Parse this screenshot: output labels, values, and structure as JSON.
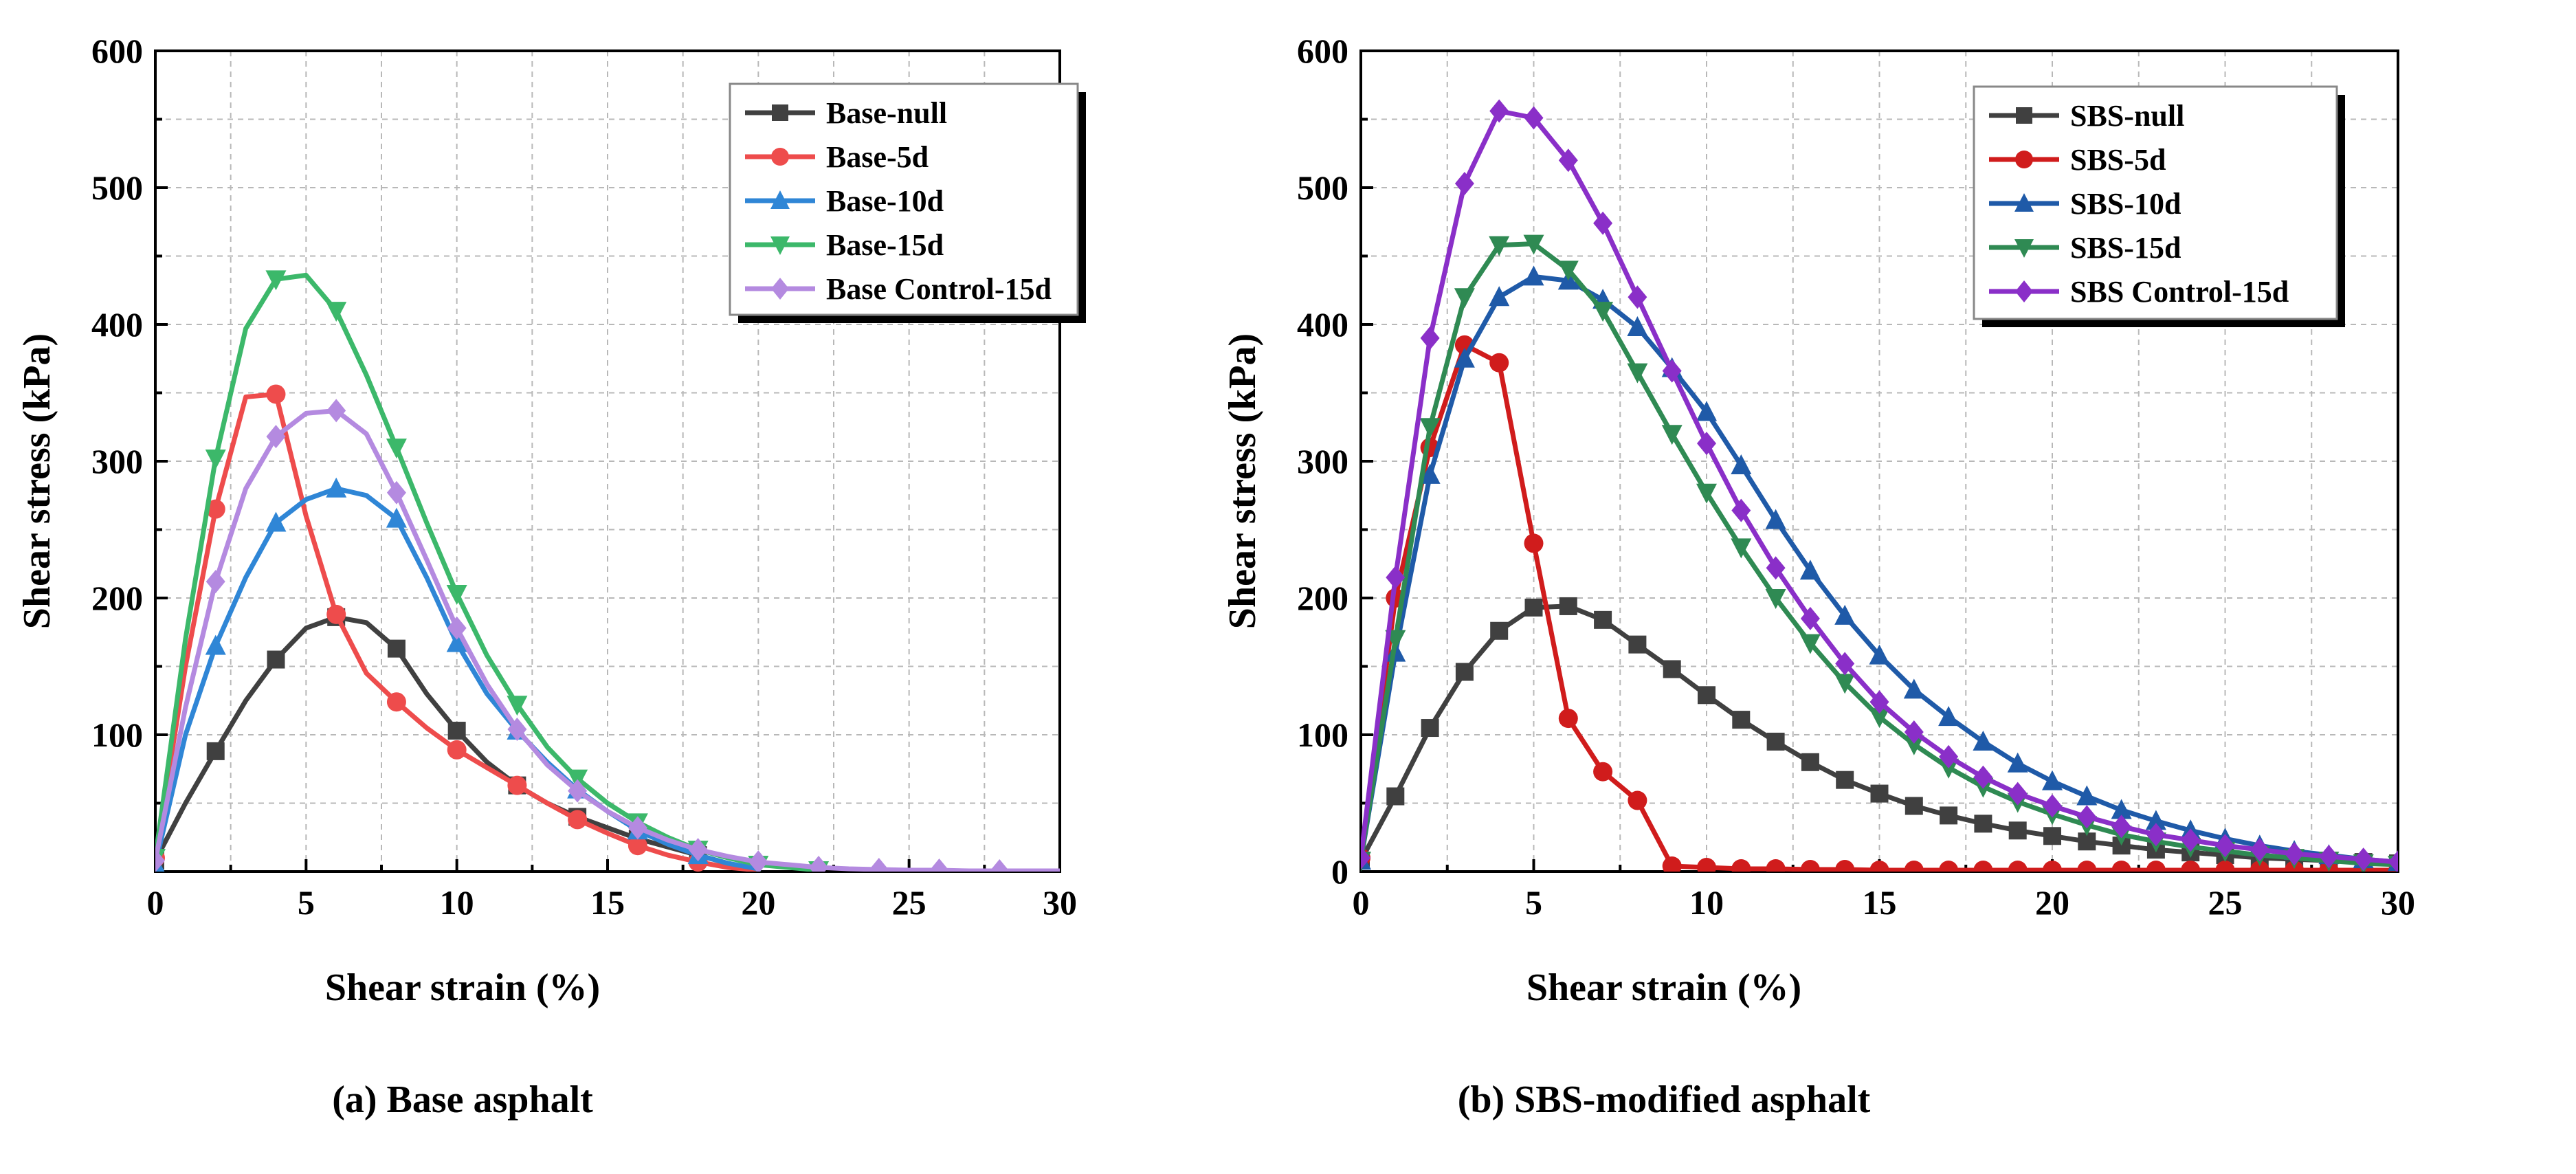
{
  "chart_data": [
    {
      "type": "line",
      "caption": "(a) Base asphalt",
      "xlabel": "Shear strain (%)",
      "ylabel": "Shear stress (kPa)",
      "xlim": [
        0,
        30
      ],
      "ylim": [
        0,
        600
      ],
      "xticks": [
        0,
        5,
        10,
        15,
        20,
        25,
        30
      ],
      "xtick_labels": [
        "0",
        "5",
        "10",
        "15",
        "20",
        "25",
        "30"
      ],
      "yticks": [
        100,
        200,
        300,
        400,
        500,
        600
      ],
      "ytick_labels": [
        "100",
        "200",
        "300",
        "400",
        "500",
        "600"
      ],
      "grid": true,
      "legend_position": "top-right",
      "series": [
        {
          "name": "Base-null",
          "color": "#404040",
          "marker": "square",
          "x": [
            0,
            1,
            2,
            3,
            4,
            5,
            6,
            7,
            8,
            9,
            10,
            11,
            12,
            13,
            14,
            15,
            16,
            17,
            18,
            19,
            20
          ],
          "y": [
            8,
            50,
            88,
            125,
            155,
            178,
            186,
            182,
            163,
            130,
            103,
            80,
            63,
            50,
            40,
            32,
            24,
            18,
            12,
            6,
            1
          ],
          "markers_at": [
            0,
            2,
            4,
            6,
            8,
            10,
            12,
            14,
            16,
            18
          ]
        },
        {
          "name": "Base-5d",
          "color": "#ee4c4c",
          "marker": "circle",
          "x": [
            0,
            1,
            2,
            3,
            4,
            5,
            6,
            7,
            8,
            9,
            10,
            11,
            12,
            13,
            14,
            15,
            16,
            17,
            18,
            19,
            20
          ],
          "y": [
            10,
            150,
            265,
            347,
            349,
            260,
            188,
            145,
            124,
            105,
            89,
            76,
            63,
            50,
            38,
            28,
            19,
            12,
            7,
            3,
            1
          ],
          "markers_at": [
            0,
            2,
            4,
            6,
            8,
            10,
            12,
            14,
            16,
            18
          ]
        },
        {
          "name": "Base-10d",
          "color": "#2f86d6",
          "marker": "triangle-up",
          "x": [
            0,
            1,
            2,
            3,
            4,
            5,
            6,
            7,
            8,
            9,
            10,
            11,
            12,
            13,
            14,
            15,
            16,
            17,
            18,
            19,
            20
          ],
          "y": [
            5,
            100,
            165,
            215,
            255,
            272,
            280,
            275,
            258,
            215,
            167,
            130,
            103,
            80,
            60,
            44,
            30,
            20,
            12,
            6,
            2
          ],
          "markers_at": [
            0,
            2,
            4,
            6,
            8,
            10,
            12,
            14,
            16,
            18
          ]
        },
        {
          "name": "Base-15d",
          "color": "#3cb86a",
          "marker": "triangle-down",
          "x": [
            0,
            1,
            2,
            3,
            4,
            5,
            6,
            7,
            8,
            9,
            10,
            11,
            12,
            13,
            14,
            15,
            16,
            17,
            18,
            19,
            20,
            21,
            22
          ],
          "y": [
            10,
            170,
            302,
            397,
            433,
            436,
            410,
            363,
            310,
            255,
            203,
            158,
            122,
            91,
            68,
            50,
            36,
            25,
            16,
            10,
            5,
            3,
            1
          ],
          "markers_at": [
            0,
            2,
            4,
            6,
            8,
            10,
            12,
            14,
            16,
            18,
            20,
            22
          ]
        },
        {
          "name": "Base Control-15d",
          "color": "#b48ae0",
          "marker": "diamond",
          "x": [
            0,
            1,
            2,
            3,
            4,
            5,
            6,
            7,
            8,
            9,
            10,
            11,
            12,
            13,
            14,
            15,
            16,
            17,
            18,
            19,
            20,
            21,
            22,
            23,
            24,
            25,
            26,
            27,
            28,
            29,
            30
          ],
          "y": [
            8,
            120,
            212,
            280,
            318,
            335,
            337,
            320,
            277,
            228,
            178,
            137,
            104,
            78,
            59,
            44,
            32,
            23,
            16,
            11,
            7,
            5,
            3,
            2,
            1.5,
            1,
            1,
            0.5,
            0.5,
            0.5,
            0.5
          ],
          "markers_at": [
            0,
            2,
            4,
            6,
            8,
            10,
            12,
            14,
            16,
            18,
            20,
            22,
            24,
            26,
            28
          ]
        }
      ],
      "legend": [
        "Base-null",
        "Base-5d",
        "Base-10d",
        "Base-15d",
        "Base Control-15d"
      ]
    },
    {
      "type": "line",
      "caption": "(b) SBS-modified asphalt",
      "xlabel": "Shear strain (%)",
      "ylabel": "Shear stress (kPa)",
      "xlim": [
        0,
        30
      ],
      "ylim": [
        0,
        600
      ],
      "xticks": [
        0,
        5,
        10,
        15,
        20,
        25,
        30
      ],
      "xtick_labels": [
        "0",
        "5",
        "10",
        "15",
        "20",
        "25",
        "30"
      ],
      "yticks": [
        0,
        100,
        200,
        300,
        400,
        500,
        600
      ],
      "ytick_labels": [
        "0",
        "100",
        "200",
        "300",
        "400",
        "500",
        "600"
      ],
      "grid": true,
      "legend_position": "top-right",
      "series": [
        {
          "name": "SBS-null",
          "color": "#404040",
          "marker": "square",
          "x": [
            0,
            1,
            2,
            3,
            4,
            5,
            6,
            7,
            8,
            9,
            10,
            11,
            12,
            13,
            14,
            15,
            16,
            17,
            18,
            19,
            20,
            21,
            22,
            23,
            24,
            25,
            26,
            27,
            28,
            29,
            30
          ],
          "y": [
            8,
            55,
            105,
            146,
            176,
            193,
            194,
            184,
            166,
            148,
            129,
            111,
            95,
            80,
            67,
            57,
            48,
            41,
            35,
            30,
            26,
            22,
            19,
            16,
            14,
            12,
            10,
            9,
            8,
            7,
            6
          ]
        },
        {
          "name": "SBS-5d",
          "color": "#d01c1c",
          "marker": "circle",
          "x": [
            0,
            1,
            2,
            3,
            4,
            5,
            6,
            7,
            8,
            9,
            10,
            11,
            12,
            13,
            14,
            15,
            16,
            17,
            18,
            19,
            20,
            21,
            22,
            23,
            24,
            25,
            26,
            27,
            28,
            29,
            30
          ],
          "y": [
            10,
            200,
            310,
            385,
            372,
            240,
            112,
            73,
            52,
            4,
            3,
            2,
            2,
            1.5,
            1.5,
            1,
            1,
            1,
            1,
            1,
            1,
            1,
            1,
            1,
            1,
            1,
            1,
            1,
            1,
            1,
            1
          ]
        },
        {
          "name": "SBS-10d",
          "color": "#1f5aa8",
          "marker": "triangle-up",
          "x": [
            0,
            1,
            2,
            3,
            4,
            5,
            6,
            7,
            8,
            9,
            10,
            11,
            12,
            13,
            14,
            15,
            16,
            17,
            18,
            19,
            20,
            21,
            22,
            23,
            24,
            25,
            26,
            27,
            28,
            29,
            30
          ],
          "y": [
            8,
            160,
            290,
            375,
            420,
            435,
            432,
            418,
            398,
            368,
            336,
            297,
            257,
            220,
            187,
            158,
            133,
            113,
            95,
            79,
            66,
            55,
            45,
            37,
            30,
            24,
            19,
            15,
            12,
            9,
            7
          ]
        },
        {
          "name": "SBS-15d",
          "color": "#2f8a53",
          "marker": "triangle-down",
          "x": [
            0,
            1,
            2,
            3,
            4,
            5,
            6,
            7,
            8,
            9,
            10,
            11,
            12,
            13,
            14,
            15,
            16,
            17,
            18,
            19,
            20,
            21,
            22,
            23,
            24,
            25,
            26,
            27,
            28,
            29,
            30
          ],
          "y": [
            8,
            170,
            325,
            420,
            458,
            459,
            440,
            410,
            365,
            320,
            277,
            237,
            200,
            167,
            138,
            113,
            93,
            76,
            62,
            51,
            42,
            34,
            27,
            22,
            18,
            15,
            12,
            10,
            8,
            6,
            5
          ]
        },
        {
          "name": "SBS Control-15d",
          "color": "#8a2fc8",
          "marker": "diamond",
          "x": [
            0,
            1,
            2,
            3,
            4,
            5,
            6,
            7,
            8,
            9,
            10,
            11,
            12,
            13,
            14,
            15,
            16,
            17,
            18,
            19,
            20,
            21,
            22,
            23,
            24,
            25,
            26,
            27,
            28,
            29,
            30
          ],
          "y": [
            10,
            215,
            390,
            503,
            556,
            551,
            520,
            474,
            420,
            366,
            313,
            264,
            222,
            185,
            152,
            124,
            102,
            84,
            69,
            57,
            48,
            40,
            33,
            27,
            23,
            19,
            16,
            13,
            11,
            9,
            7
          ]
        }
      ],
      "legend": [
        "SBS-null",
        "SBS-5d",
        "SBS-10d",
        "SBS-15d",
        "SBS Control-15d"
      ]
    }
  ]
}
